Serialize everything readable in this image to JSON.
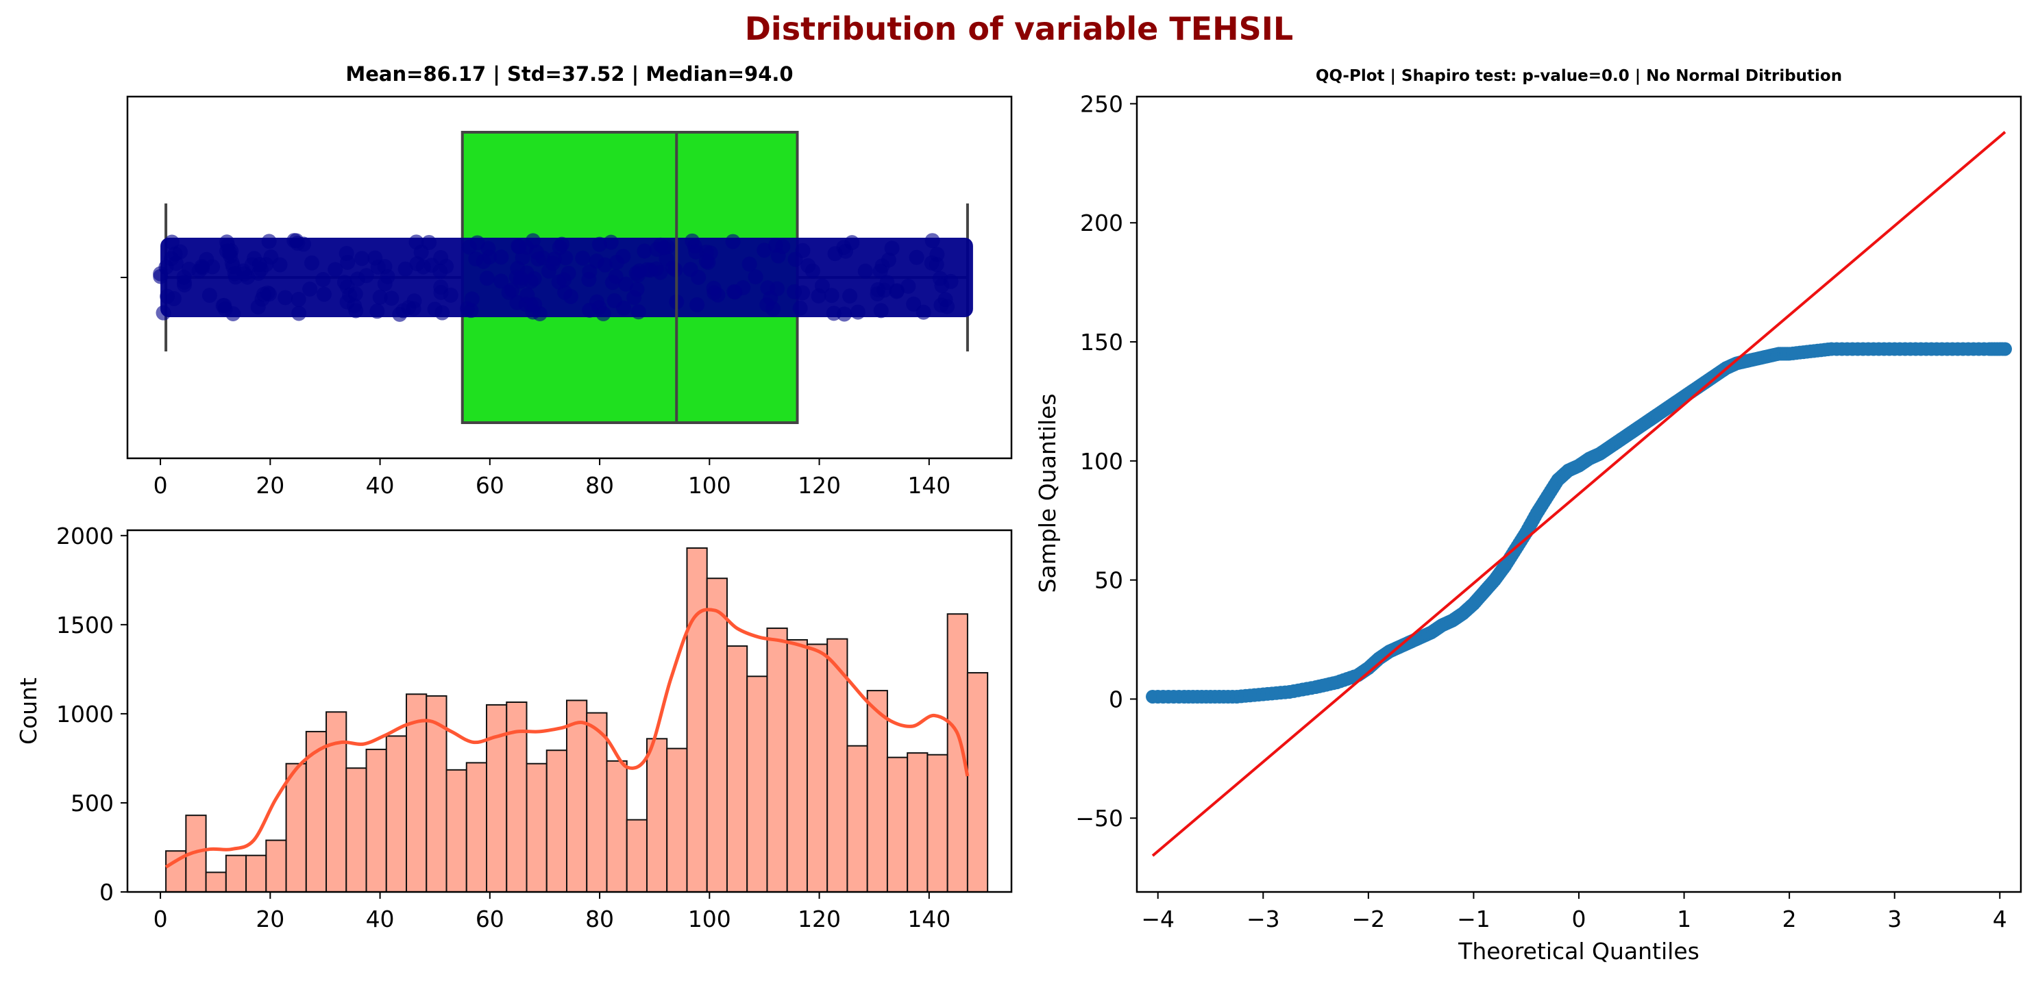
{
  "suptitle": "Distribution of variable TEHSIL",
  "colors": {
    "title": "#8b0000",
    "box_fill": "#1fe01f",
    "box_edge": "#444444",
    "strip_points": "#00008b",
    "hist_fill": "#ffab98",
    "kde_line": "#ff5733",
    "qq_points": "#1f77b4",
    "qq_line": "#ee1111"
  },
  "chart_data": [
    {
      "type": "box",
      "title": "Mean=86.17 | Std=37.52 | Median=94.0",
      "xlabel": "",
      "ylabel": "",
      "xlim": [
        -6,
        155
      ],
      "xticks": [
        0,
        20,
        40,
        60,
        80,
        100,
        120,
        140
      ],
      "stats": {
        "min": 1,
        "q1": 55,
        "median": 94,
        "q3": 116,
        "max": 147,
        "mean": 86.17,
        "std": 37.52
      },
      "strip": {
        "min": 0,
        "max": 148
      }
    },
    {
      "type": "bar",
      "subtype": "histogram",
      "xlabel": "",
      "ylabel": "Count",
      "xlim": [
        -6,
        155
      ],
      "ylim": [
        0,
        2030
      ],
      "xticks": [
        0,
        20,
        40,
        60,
        80,
        100,
        120,
        140
      ],
      "yticks": [
        0,
        500,
        1000,
        1500,
        2000
      ],
      "bin_start": 1,
      "bin_width": 3.65,
      "values": [
        230,
        430,
        110,
        205,
        205,
        290,
        720,
        900,
        1010,
        695,
        800,
        875,
        1110,
        1100,
        685,
        725,
        1050,
        1065,
        720,
        795,
        1075,
        1005,
        735,
        405,
        860,
        805,
        1930,
        1760,
        1380,
        1210,
        1480,
        1415,
        1390,
        1420,
        820,
        1130,
        755,
        780,
        770,
        1560,
        1230
      ],
      "kde": {
        "x": [
          1,
          5,
          9,
          13,
          17,
          21,
          25,
          29,
          33,
          37,
          41,
          45,
          49,
          53,
          57,
          61,
          65,
          69,
          73,
          77,
          81,
          85,
          89,
          93,
          97,
          101,
          105,
          109,
          113,
          117,
          121,
          125,
          129,
          133,
          137,
          141,
          145,
          147
        ],
        "y": [
          140,
          210,
          240,
          240,
          290,
          520,
          700,
          800,
          840,
          830,
          880,
          940,
          960,
          900,
          840,
          870,
          900,
          900,
          920,
          950,
          870,
          700,
          780,
          1200,
          1530,
          1580,
          1480,
          1430,
          1410,
          1380,
          1330,
          1200,
          1060,
          960,
          930,
          990,
          900,
          650
        ]
      }
    },
    {
      "type": "scatter",
      "subtype": "qq-plot",
      "title": "QQ-Plot | Shapiro test: p-value=0.0 | No Normal Ditribution",
      "xlabel": "Theoretical Quantiles",
      "ylabel": "Sample Quantiles",
      "xlim": [
        -4.2,
        4.2
      ],
      "ylim": [
        -81,
        253
      ],
      "xticks": [
        -4,
        -3,
        -2,
        -1,
        0,
        1,
        2,
        3,
        4
      ],
      "yticks": [
        -50,
        0,
        50,
        100,
        150,
        200,
        250
      ],
      "points": {
        "x": [
          -4.05,
          -3.75,
          -3.5,
          -3.25,
          -3.0,
          -2.75,
          -2.5,
          -2.3,
          -2.1,
          -2.0,
          -1.9,
          -1.8,
          -1.7,
          -1.6,
          -1.5,
          -1.4,
          -1.3,
          -1.2,
          -1.1,
          -1.0,
          -0.9,
          -0.8,
          -0.7,
          -0.6,
          -0.5,
          -0.4,
          -0.3,
          -0.2,
          -0.1,
          0.0,
          0.1,
          0.2,
          0.3,
          0.4,
          0.5,
          0.6,
          0.7,
          0.8,
          0.9,
          1.0,
          1.1,
          1.2,
          1.3,
          1.4,
          1.5,
          1.6,
          1.7,
          1.8,
          1.9,
          2.0,
          2.2,
          2.4,
          2.7,
          3.0,
          3.3,
          3.6,
          3.9,
          4.05
        ],
        "y": [
          1,
          1,
          1,
          1,
          2,
          3,
          5,
          7,
          10,
          13,
          17,
          20,
          22,
          24,
          26,
          28,
          31,
          33,
          36,
          40,
          45,
          50,
          56,
          63,
          70,
          78,
          85,
          92,
          96,
          98,
          101,
          103,
          106,
          109,
          112,
          115,
          118,
          121,
          124,
          127,
          130,
          133,
          136,
          139,
          141,
          142,
          143,
          144,
          145,
          145,
          146,
          147,
          147,
          147,
          147,
          147,
          147,
          147
        ]
      },
      "line": {
        "slope": 37.52,
        "intercept": 86.17,
        "x": [
          -4.05,
          4.05
        ]
      }
    }
  ]
}
